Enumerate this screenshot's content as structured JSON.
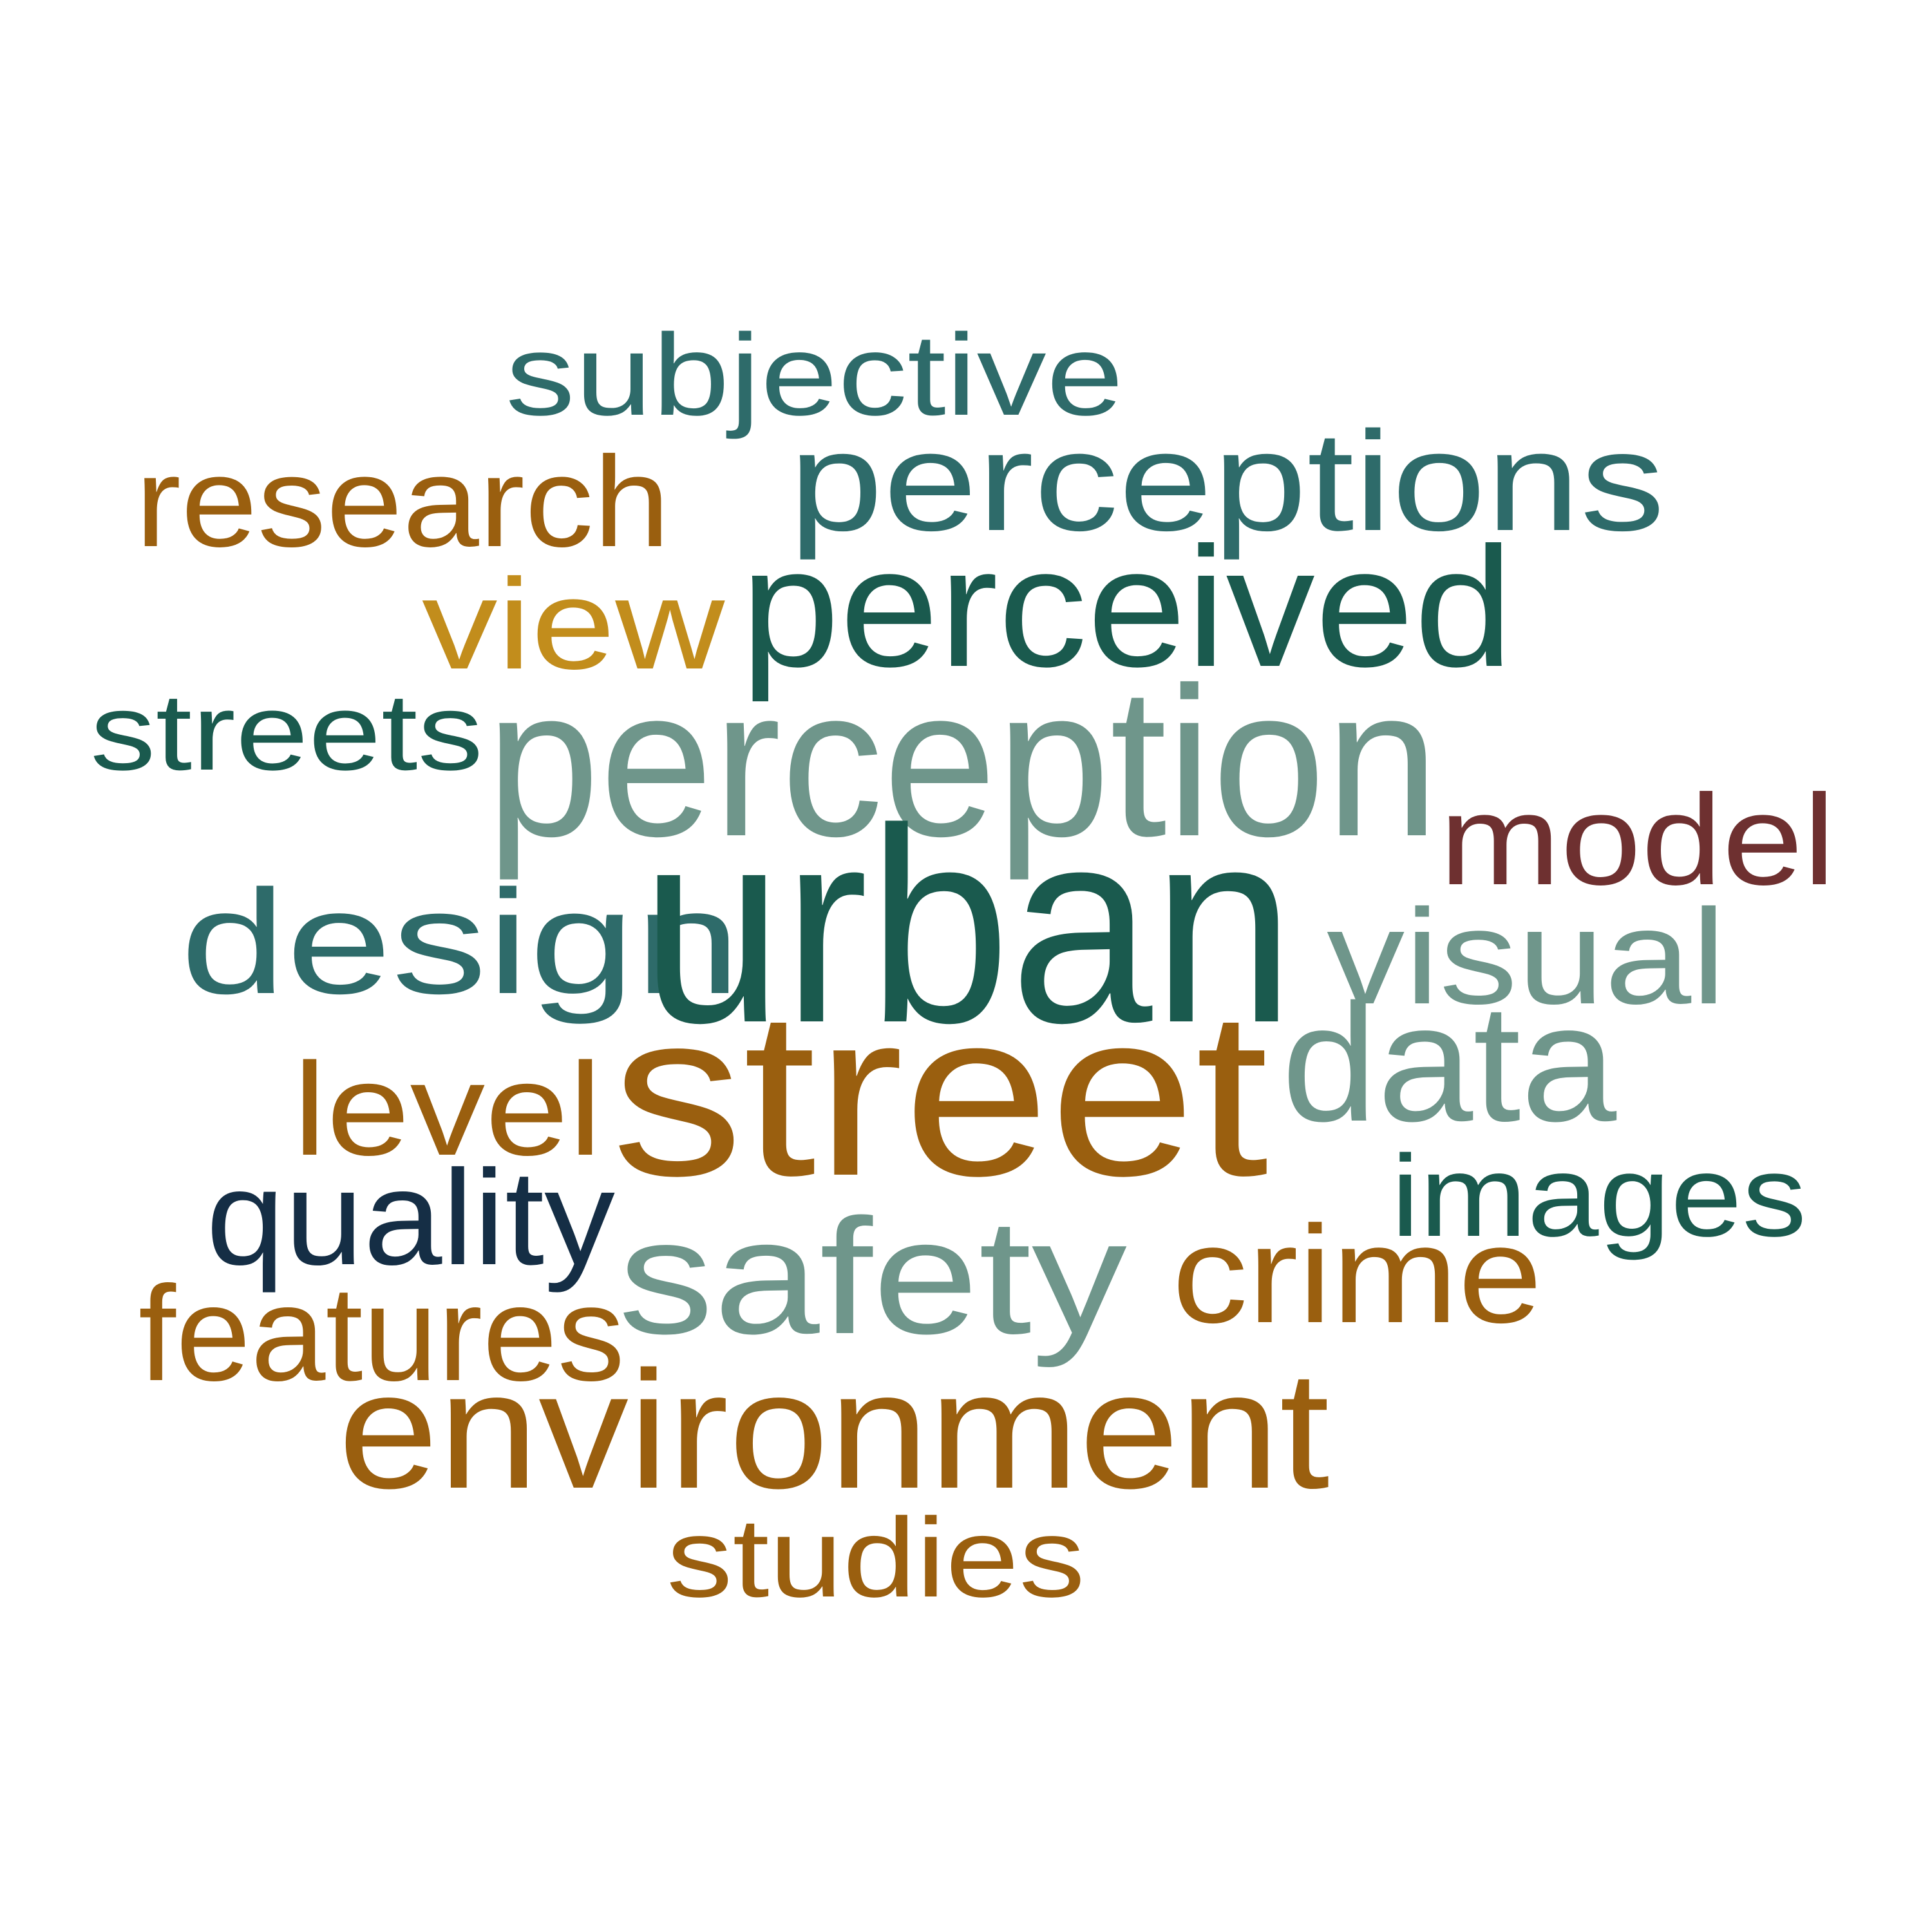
{
  "colors": {
    "teal_dark": "#1a5a4e",
    "teal": "#2e6b6a",
    "sage": "#6f968b",
    "amber": "#9a5f0f",
    "gold": "#c28d1c",
    "maroon": "#6e3030",
    "navy": "#152e45"
  },
  "words": [
    {
      "text": "subjective",
      "color": "#2e6b6a"
    },
    {
      "text": "perceptions",
      "color": "#2e6b6a"
    },
    {
      "text": "research",
      "color": "#9a5f0f"
    },
    {
      "text": "view",
      "color": "#c28d1c"
    },
    {
      "text": "perceived",
      "color": "#1a5a4e"
    },
    {
      "text": "streets",
      "color": "#1a5a4e"
    },
    {
      "text": "perception",
      "color": "#6f968b"
    },
    {
      "text": "model",
      "color": "#6e3030"
    },
    {
      "text": "design",
      "color": "#2e6b6a"
    },
    {
      "text": "urban",
      "color": "#1a5a4e"
    },
    {
      "text": "visual",
      "color": "#6f968b"
    },
    {
      "text": "level",
      "color": "#9a5f0f"
    },
    {
      "text": "street",
      "color": "#9a5f0f"
    },
    {
      "text": "data",
      "color": "#6f968b"
    },
    {
      "text": "images",
      "color": "#1a5a4e"
    },
    {
      "text": "quality",
      "color": "#152e45"
    },
    {
      "text": "safety",
      "color": "#6f968b"
    },
    {
      "text": "crime",
      "color": "#9a5f0f"
    },
    {
      "text": "features",
      "color": "#9a5f0f"
    },
    {
      "text": "environment",
      "color": "#9a5f0f"
    },
    {
      "text": "studies",
      "color": "#9a5f0f"
    }
  ]
}
